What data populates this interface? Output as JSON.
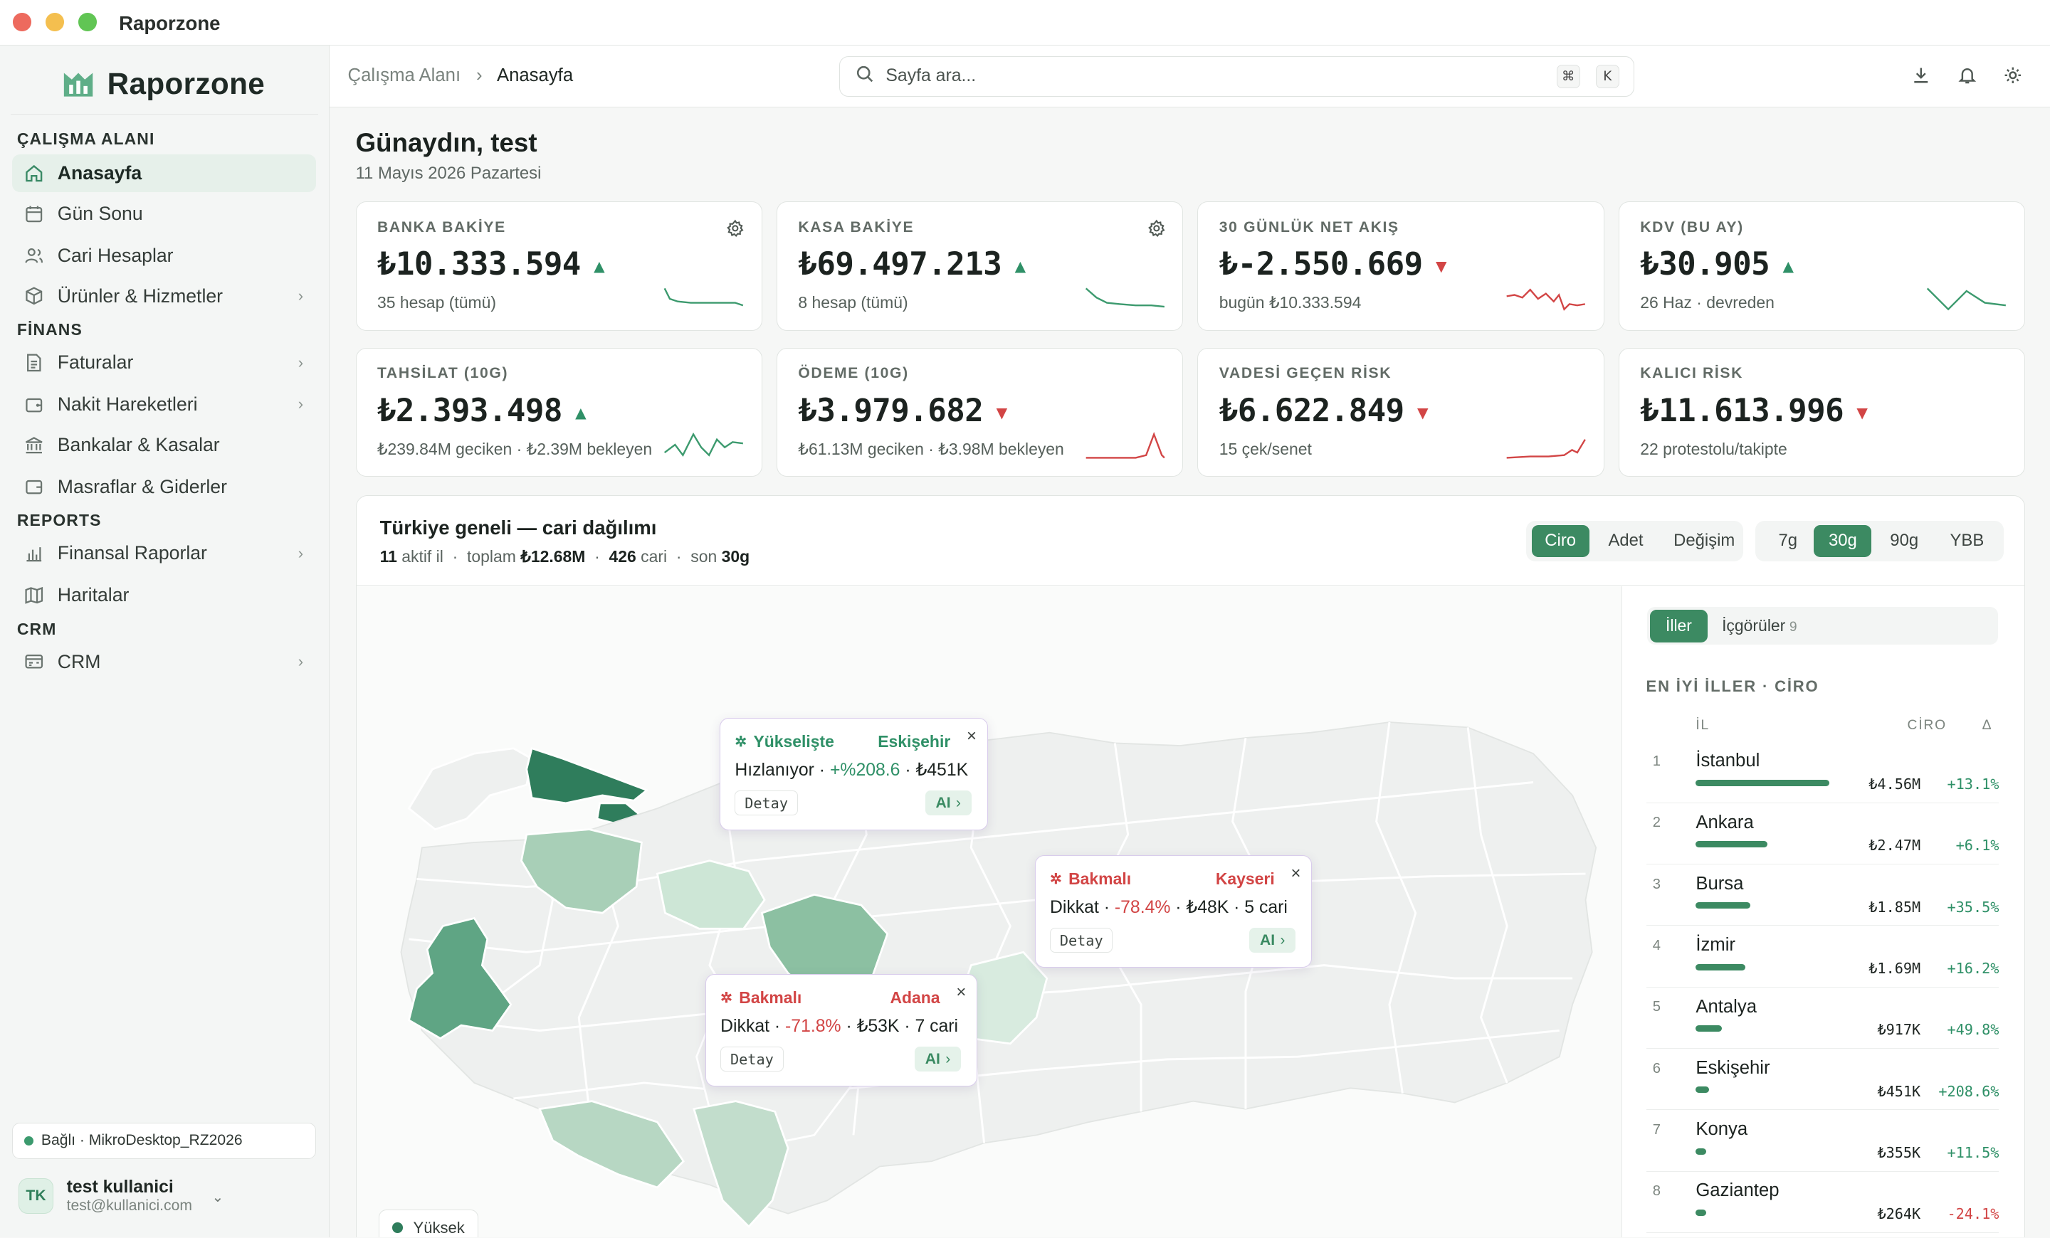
{
  "window": {
    "title": "Raporzone"
  },
  "brand": {
    "name": "Raporzone"
  },
  "sidebar": {
    "sections": [
      "ÇALIŞMA ALANI",
      "FİNANS",
      "REPORTS",
      "CRM"
    ],
    "items": [
      {
        "label": "Anasayfa",
        "icon": "home-icon",
        "active": true
      },
      {
        "label": "Gün Sonu",
        "icon": "calendar-icon"
      },
      {
        "label": "Cari Hesaplar",
        "icon": "users-icon"
      },
      {
        "label": "Ürünler & Hizmetler",
        "icon": "box-icon",
        "chevron": true
      },
      {
        "label": "Faturalar",
        "icon": "document-icon",
        "chevron": true
      },
      {
        "label": "Nakit Hareketleri",
        "icon": "wallet-icon",
        "chevron": true
      },
      {
        "label": "Bankalar & Kasalar",
        "icon": "bank-icon"
      },
      {
        "label": "Masraflar & Giderler",
        "icon": "wallet-icon"
      },
      {
        "label": "Finansal Raporlar",
        "icon": "bar-chart-icon",
        "chevron": true
      },
      {
        "label": "Haritalar",
        "icon": "map-icon"
      },
      {
        "label": "CRM",
        "icon": "crm-icon",
        "chevron": true
      }
    ],
    "connection": "Bağlı · MikroDesktop_RZ2026",
    "user": {
      "initials": "TK",
      "name": "test kullanici",
      "email": "test@kullanici.com"
    }
  },
  "topbar": {
    "breadcrumb_parent": "Çalışma Alanı",
    "breadcrumb_current": "Anasayfa",
    "search_placeholder": "Sayfa ara...",
    "kbd1": "⌘",
    "kbd2": "K"
  },
  "header": {
    "greeting": "Günaydın, test",
    "date": "11 Mayıs 2026 Pazartesi"
  },
  "cards": [
    {
      "label": "BANKA BAKİYE",
      "value": "₺10.333.594",
      "trend": "up",
      "sub": "35 hesap (tümü)",
      "gear": true
    },
    {
      "label": "KASA BAKİYE",
      "value": "₺69.497.213",
      "trend": "up",
      "sub": "8 hesap (tümü)",
      "gear": true
    },
    {
      "label": "30 GÜNLÜK NET AKIŞ",
      "value": "₺-2.550.669",
      "trend": "down",
      "sub": "bugün ₺10.333.594"
    },
    {
      "label": "KDV (BU AY)",
      "value": "₺30.905",
      "trend": "up",
      "sub": "26 Haz · devreden"
    },
    {
      "label": "TAHSİLAT (10G)",
      "value": "₺2.393.498",
      "trend": "up",
      "sub": "₺239.84M geciken · ₺2.39M bekleyen"
    },
    {
      "label": "ÖDEME (10G)",
      "value": "₺3.979.682",
      "trend": "down",
      "sub": "₺61.13M geciken · ₺3.98M bekleyen"
    },
    {
      "label": "VADESİ GEÇEN RİSK",
      "value": "₺6.622.849",
      "trend": "down",
      "sub": "15 çek/senet"
    },
    {
      "label": "KALICI RİSK",
      "value": "₺11.613.996",
      "trend": "down",
      "sub": "22 protestolu/takipte"
    }
  ],
  "colors": {
    "accent": "#3c8a62",
    "up": "#2f9067",
    "down": "#d24545",
    "map_dark": "#2f7d5c",
    "map_mid": "#a8cfb7",
    "map_light": "#d3e8da"
  },
  "map": {
    "title": "Türkiye geneli — cari dağılımı",
    "sub": {
      "active": "11",
      "active_label": "aktif il",
      "total_label": "toplam",
      "total": "₺12.68M",
      "cari": "426",
      "cari_label": "cari",
      "period_label": "son",
      "period": "30g"
    },
    "metrics": [
      "Ciro",
      "Adet",
      "Değişim"
    ],
    "metric_selected": "Ciro",
    "periods": [
      "7g",
      "30g",
      "90g",
      "YBB"
    ],
    "period_selected": "30g",
    "legend": "Yüksek",
    "popups": [
      {
        "type": "Yükselişte",
        "city": "Eskişehir",
        "line_pre": "Hızlanıyor · ",
        "line_pct": "+%208.6",
        "line_post": " · ₺451K",
        "detail": "Detay",
        "ai": "AI"
      },
      {
        "type": "Bakmalı",
        "city": "Kayseri",
        "line_pre": "Dikkat · ",
        "line_pct": "-78.4%",
        "line_post": " · ₺48K · 5 cari",
        "detail": "Detay",
        "ai": "AI"
      },
      {
        "type": "Bakmalı",
        "city": "Adana",
        "line_pre": "Dikkat · ",
        "line_pct": "-71.8%",
        "line_post": " · ₺53K · 7 cari",
        "detail": "Detay",
        "ai": "AI"
      }
    ]
  },
  "ranking": {
    "tabs": [
      "İller",
      "İçgörüler"
    ],
    "insight_count": "9",
    "heading": "EN İYİ İLLER · CİRO",
    "columns": [
      "İL",
      "CİRO",
      "Δ"
    ],
    "rows": [
      {
        "rank": "1",
        "name": "İstanbul",
        "value": "₺4.56M",
        "delta": "+13.1%",
        "share": 1.0
      },
      {
        "rank": "2",
        "name": "Ankara",
        "value": "₺2.47M",
        "delta": "+6.1%",
        "share": 0.54
      },
      {
        "rank": "3",
        "name": "Bursa",
        "value": "₺1.85M",
        "delta": "+35.5%",
        "share": 0.41
      },
      {
        "rank": "4",
        "name": "İzmir",
        "value": "₺1.69M",
        "delta": "+16.2%",
        "share": 0.37
      },
      {
        "rank": "5",
        "name": "Antalya",
        "value": "₺917K",
        "delta": "+49.8%",
        "share": 0.2
      },
      {
        "rank": "6",
        "name": "Eskişehir",
        "value": "₺451K",
        "delta": "+208.6%",
        "share": 0.1
      },
      {
        "rank": "7",
        "name": "Konya",
        "value": "₺355K",
        "delta": "+11.5%",
        "share": 0.08
      },
      {
        "rank": "8",
        "name": "Gaziantep",
        "value": "₺264K",
        "delta": "-24.1%",
        "share": 0.06
      }
    ]
  }
}
